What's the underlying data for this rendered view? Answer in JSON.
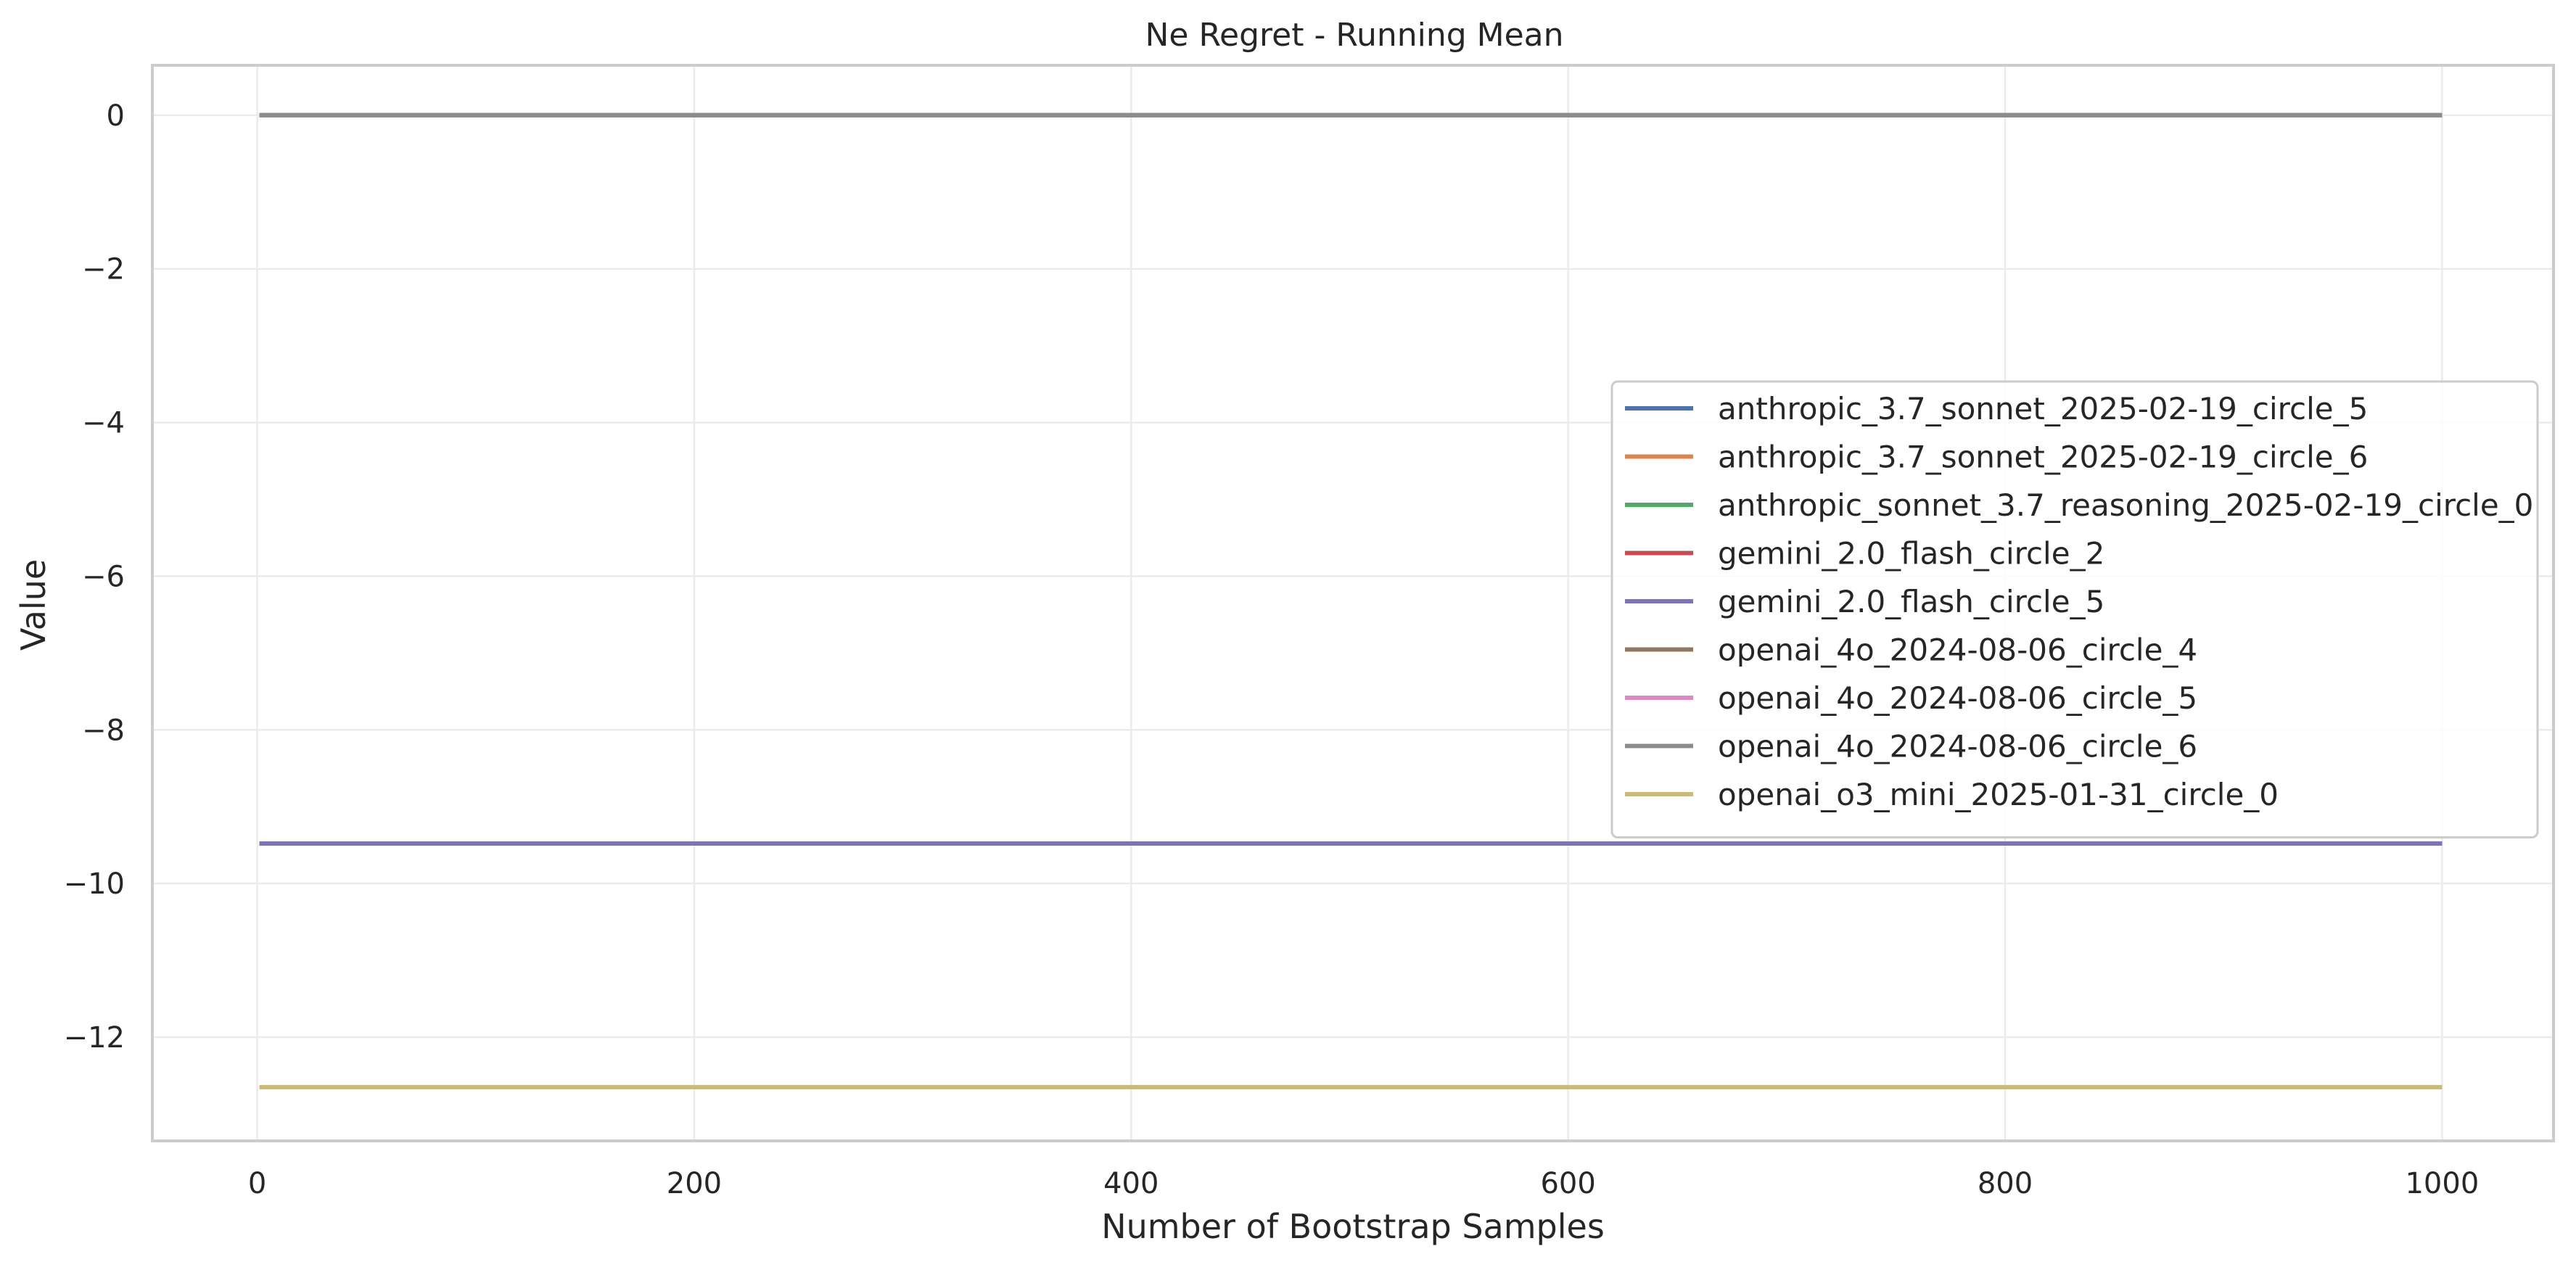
{
  "chart_data": {
    "type": "line",
    "title": "Ne Regret - Running Mean",
    "xlabel": "Number of Bootstrap Samples",
    "ylabel": "Value",
    "xlim": [
      -48,
      1051
    ],
    "ylim": [
      -13.35,
      0.65
    ],
    "x_ticks": [
      0,
      200,
      400,
      600,
      800,
      1000
    ],
    "y_ticks": [
      0,
      -2,
      -4,
      -6,
      -8,
      -10,
      -12
    ],
    "x_tick_labels": [
      "0",
      "200",
      "400",
      "600",
      "800",
      "1000"
    ],
    "y_tick_labels": [
      "0",
      "−2",
      "−4",
      "−6",
      "−8",
      "−10",
      "−12"
    ],
    "grid": true,
    "legend_position": "center-right",
    "series": [
      {
        "name": "anthropic_3.7_sonnet_2025-02-19_circle_5",
        "color": "#4C72B0",
        "x": [
          1,
          1000
        ],
        "y": [
          0,
          0
        ]
      },
      {
        "name": "anthropic_3.7_sonnet_2025-02-19_circle_6",
        "color": "#DD8452",
        "x": [
          1,
          1000
        ],
        "y": [
          0,
          0
        ]
      },
      {
        "name": "anthropic_sonnet_3.7_reasoning_2025-02-19_circle_0",
        "color": "#55A868",
        "x": [
          1,
          1000
        ],
        "y": [
          0,
          0
        ]
      },
      {
        "name": "gemini_2.0_flash_circle_2",
        "color": "#C44E52",
        "x": [
          1,
          1000
        ],
        "y": [
          -9.48,
          -9.48
        ]
      },
      {
        "name": "gemini_2.0_flash_circle_5",
        "color": "#8172B3",
        "x": [
          1,
          1000
        ],
        "y": [
          -9.48,
          -9.48
        ]
      },
      {
        "name": "openai_4o_2024-08-06_circle_4",
        "color": "#937860",
        "x": [
          1,
          1000
        ],
        "y": [
          0,
          0
        ]
      },
      {
        "name": "openai_4o_2024-08-06_circle_5",
        "color": "#DA8BC3",
        "x": [
          1,
          1000
        ],
        "y": [
          0,
          0
        ]
      },
      {
        "name": "openai_4o_2024-08-06_circle_6",
        "color": "#8C8C8C",
        "x": [
          1,
          1000
        ],
        "y": [
          0,
          0
        ]
      },
      {
        "name": "openai_o3_mini_2025-01-31_circle_0",
        "color": "#CCB974",
        "x": [
          1,
          1000
        ],
        "y": [
          -12.65,
          -12.65
        ]
      }
    ]
  }
}
